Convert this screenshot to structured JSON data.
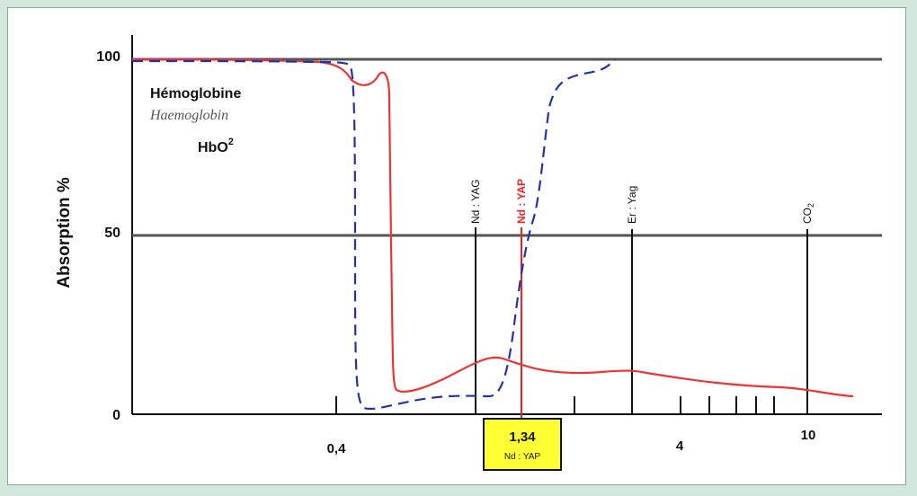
{
  "chart_data": {
    "type": "line",
    "ylabel": "Absorption %",
    "y_ticks": [
      "0",
      "50",
      "100"
    ],
    "x_ticks": [
      "0,4",
      "4",
      "10"
    ],
    "legend": {
      "line1": "Hémoglobine",
      "line2": "Haemoglobin",
      "line3": "HbO",
      "line3_sup": "2"
    },
    "lasers": [
      {
        "name": "Nd : YAG",
        "color": "#111111"
      },
      {
        "name": "Nd : YAP",
        "color": "#e02020"
      },
      {
        "name": "Er : Yag",
        "color": "#111111"
      },
      {
        "name": "CO2",
        "label": "CO",
        "sub": "2",
        "color": "#111111"
      }
    ],
    "callout": {
      "value": "1,34",
      "sub": "Nd : YAP",
      "color": "#ffff33"
    },
    "series": [
      {
        "style": "solid",
        "color": "#ee3333"
      },
      {
        "style": "dashed",
        "color": "#2233aa"
      }
    ],
    "grid": "horizontal at 50 and 100"
  }
}
